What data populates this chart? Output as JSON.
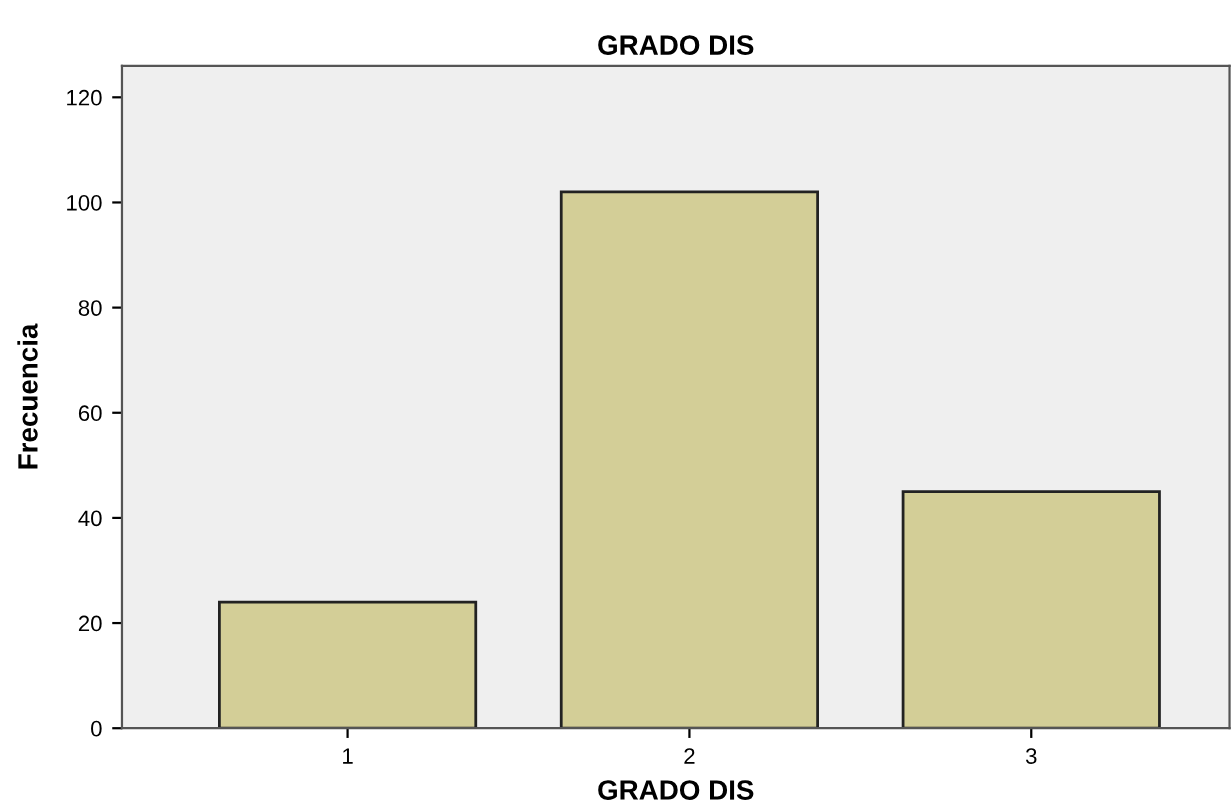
{
  "chart_data": {
    "type": "bar",
    "title": "GRADO DIS",
    "xlabel": "GRADO DIS",
    "ylabel": "Frecuencia",
    "categories": [
      "1",
      "2",
      "3"
    ],
    "series": [
      {
        "color": "#d3ce97",
        "values": [
          24,
          102,
          45
        ]
      }
    ],
    "ylim": [
      0,
      126
    ],
    "yticks": [
      0,
      20,
      40,
      60,
      80,
      100,
      120
    ],
    "grid": false,
    "legend": false
  }
}
